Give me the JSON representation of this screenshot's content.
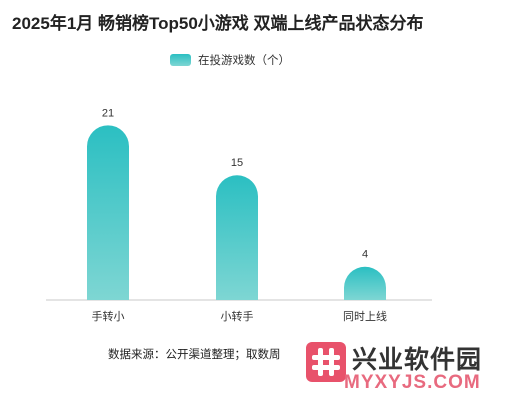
{
  "chart_data": {
    "type": "bar",
    "title": "2025年1月 畅销榜Top50小游戏 双端上线产品状态分布",
    "categories": [
      "手转小",
      "小转手",
      "同时上线"
    ],
    "series": [
      {
        "name": "在投游戏数（个）",
        "values": [
          21,
          15,
          4
        ]
      }
    ],
    "ylim": [
      0,
      22
    ],
    "grid": false,
    "legend_position": "top-center",
    "colors": {
      "bar_top": "#2bbfc2",
      "bar_bottom": "#7ed6d3"
    }
  },
  "footer": {
    "source": "数据来源：公开渠道整理；取数周"
  },
  "watermark": {
    "name": "兴业软件园",
    "url": "MYXYJS.COM",
    "logo_color": "#e8526b"
  }
}
